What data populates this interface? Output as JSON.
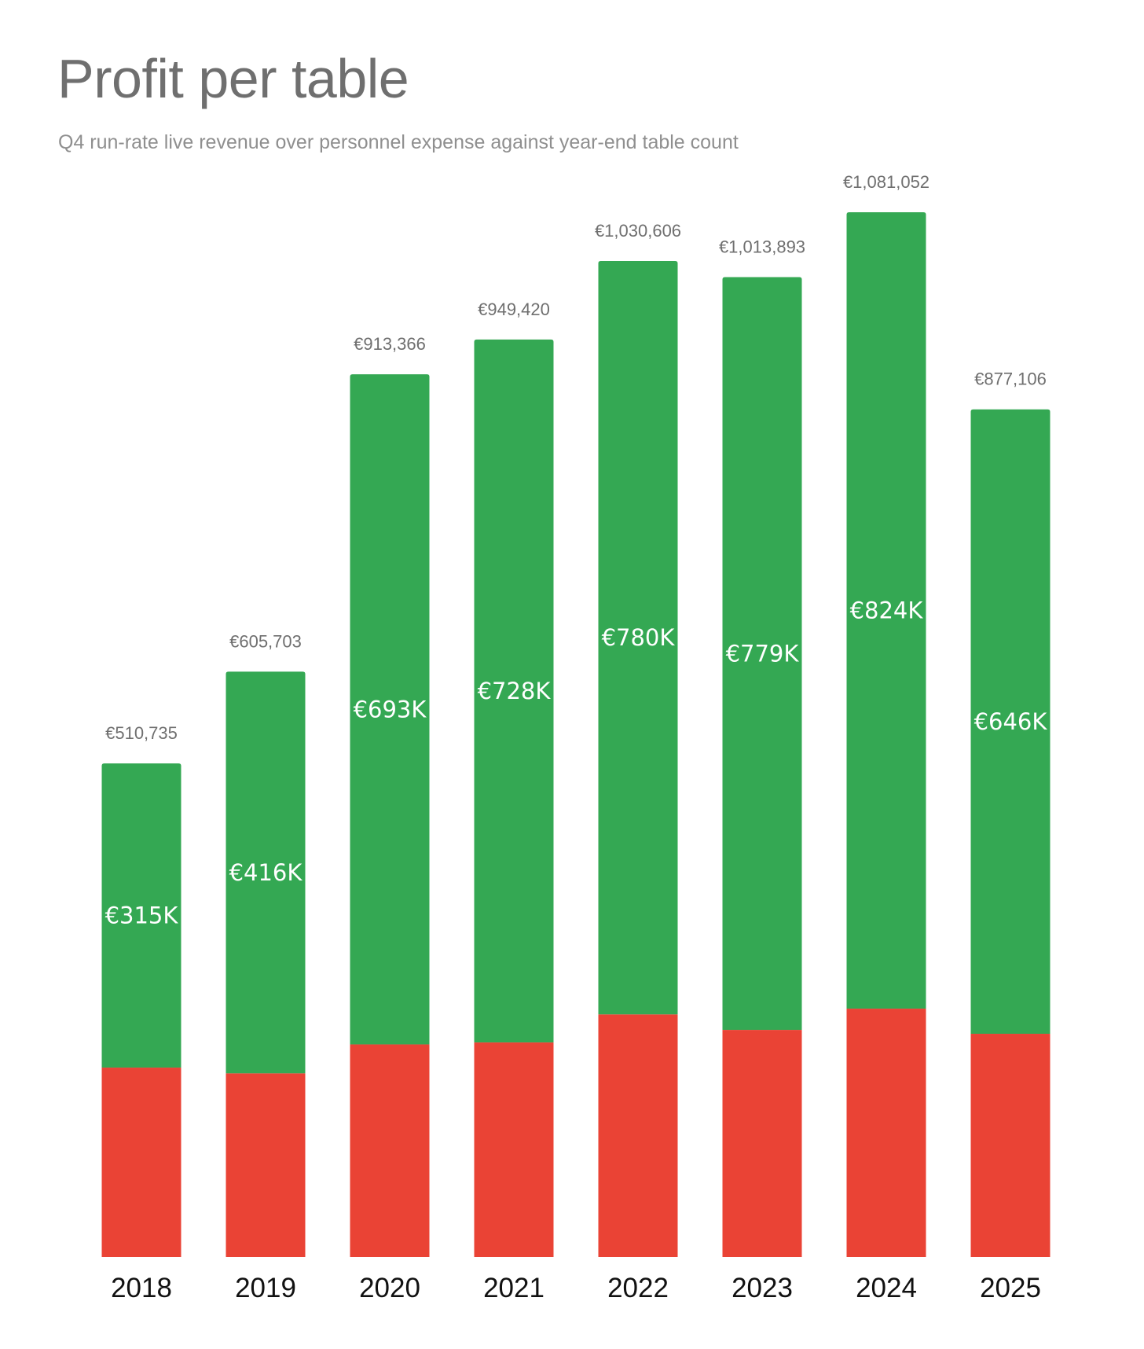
{
  "chart_data": {
    "type": "bar",
    "stacked": true,
    "title": "Profit per table",
    "subtitle": "Q4 run-rate live revenue over personnel expense against year-end table count",
    "categories": [
      "2018",
      "2019",
      "2020",
      "2021",
      "2022",
      "2023",
      "2024",
      "2025"
    ],
    "series": [
      {
        "name": "Personnel expense",
        "color": "#ea4335",
        "values": [
          196000,
          190000,
          220000,
          222000,
          251000,
          235000,
          257000,
          231000
        ]
      },
      {
        "name": "Profit",
        "color": "#34a853",
        "values": [
          315000,
          416000,
          693000,
          728000,
          780000,
          779000,
          824000,
          646000
        ],
        "labels": [
          "€315K",
          "€416K",
          "€693K",
          "€728K",
          "€780K",
          "€779K",
          "€824K",
          "€646K"
        ]
      }
    ],
    "totals": [
      510735,
      605703,
      913366,
      949420,
      1030606,
      1013893,
      1081052,
      877106
    ],
    "total_labels": [
      "€510,735",
      "€605,703",
      "€913,366",
      "€949,420",
      "€1,030,606",
      "€1,013,893",
      "€1,081,052",
      "€877,106"
    ],
    "ylim": [
      0,
      1081052
    ],
    "grid": false,
    "xlabel": "",
    "ylabel": ""
  }
}
